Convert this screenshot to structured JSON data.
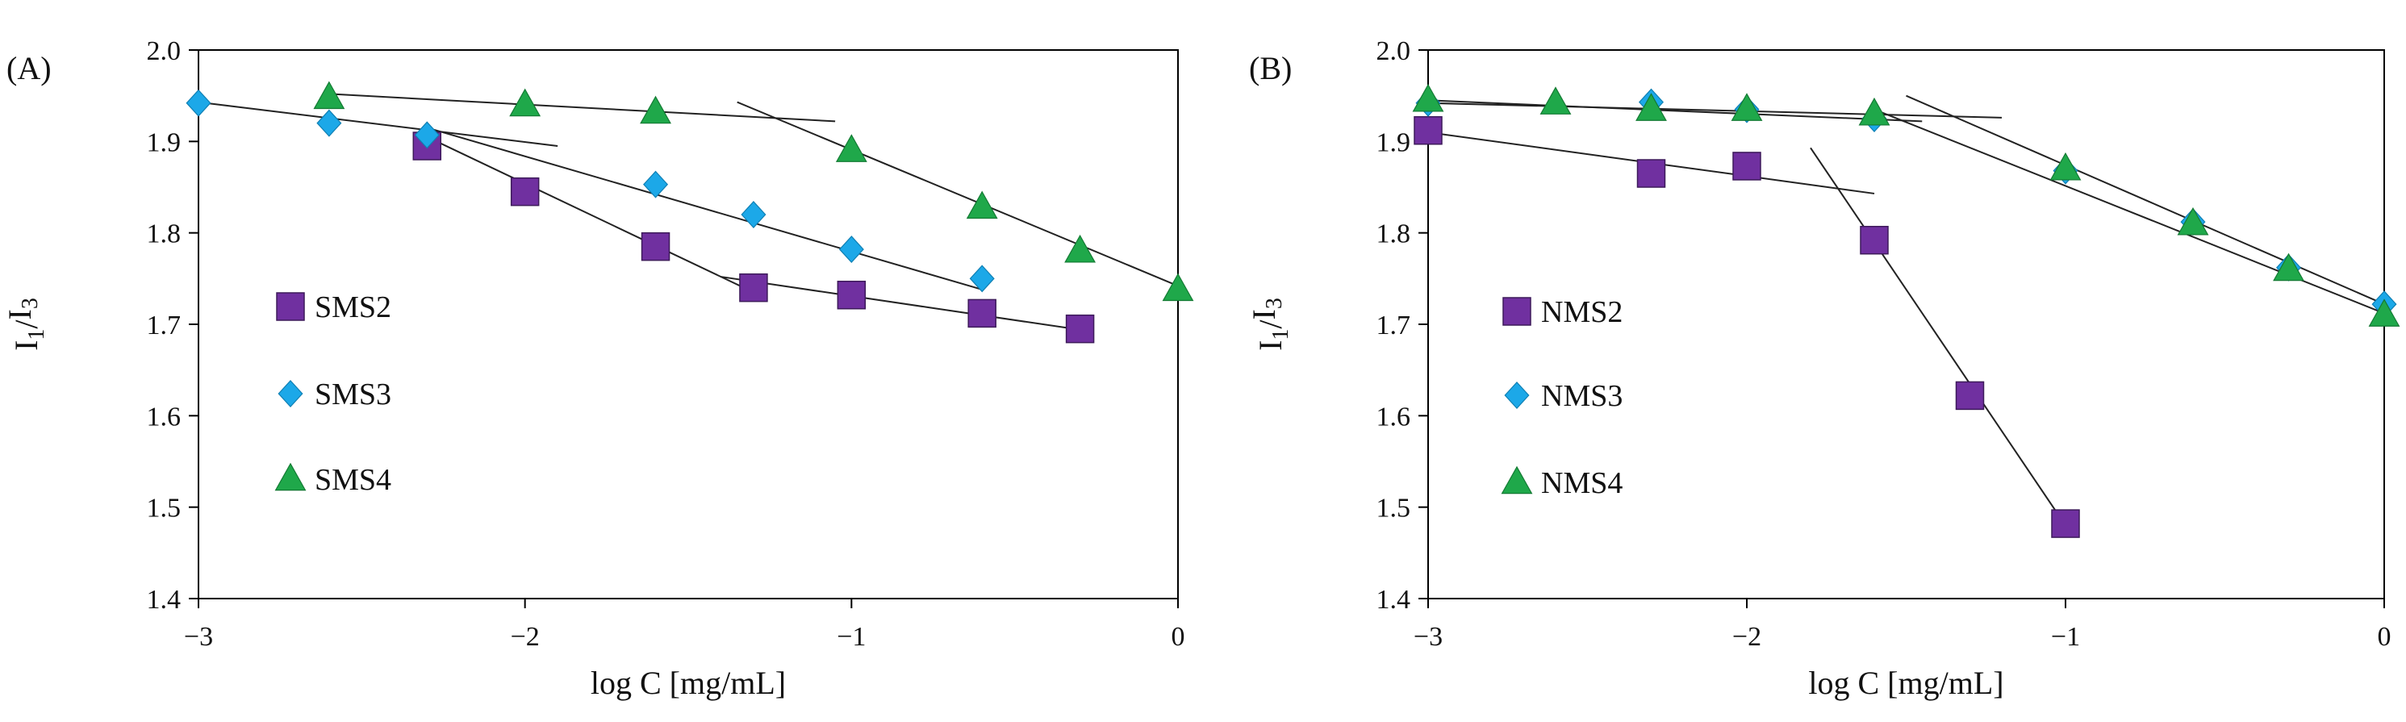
{
  "chart_data": [
    {
      "type": "scatter",
      "panel_label": "(A)",
      "xlabel": "log C [mg/mL]",
      "ylabel": {
        "main": "I",
        "sub1": "1",
        "slash": "/",
        "main2": "I",
        "sub2": "3"
      },
      "xlim": [
        -3,
        0
      ],
      "ylim": [
        1.4,
        2.0
      ],
      "xticks": [
        "−3",
        "−2",
        "−1",
        "0"
      ],
      "xtick_values": [
        -3,
        -2,
        -1,
        0
      ],
      "yticks": [
        "1.4",
        "1.5",
        "1.6",
        "1.7",
        "1.8",
        "1.9",
        "2.0"
      ],
      "ytick_values": [
        1.4,
        1.5,
        1.6,
        1.7,
        1.8,
        1.9,
        2.0
      ],
      "legend_position": "bottom-left",
      "series": [
        {
          "name": "SMS2",
          "marker": "square",
          "color": "#7030a0",
          "x": [
            -2.3,
            -2.0,
            -1.6,
            -1.3,
            -1.0,
            -0.6,
            -0.3
          ],
          "y": [
            1.895,
            1.845,
            1.785,
            1.74,
            1.732,
            1.712,
            1.695
          ]
        },
        {
          "name": "SMS3",
          "marker": "diamond",
          "color": "#1ca8e8",
          "x": [
            -3.0,
            -2.6,
            -2.3,
            -1.6,
            -1.3,
            -1.0,
            -0.6
          ],
          "y": [
            1.942,
            1.92,
            1.907,
            1.853,
            1.82,
            1.782,
            1.75
          ]
        },
        {
          "name": "SMS4",
          "marker": "triangle",
          "color": "#1fa84a",
          "x": [
            -2.6,
            -2.0,
            -1.6,
            -1.0,
            -0.6,
            -0.3,
            0.0
          ],
          "y": [
            1.948,
            1.94,
            1.932,
            1.89,
            1.828,
            1.78,
            1.738
          ]
        }
      ],
      "fit_lines": [
        {
          "color": "#222",
          "x": [
            -2.3,
            -1.3
          ],
          "y": [
            1.905,
            1.735
          ]
        },
        {
          "color": "#222",
          "x": [
            -1.4,
            -0.3
          ],
          "y": [
            1.752,
            1.694
          ]
        },
        {
          "color": "#222",
          "x": [
            -3.0,
            -1.9
          ],
          "y": [
            1.943,
            1.895
          ]
        },
        {
          "color": "#222",
          "x": [
            -2.3,
            -0.6
          ],
          "y": [
            1.915,
            1.738
          ]
        },
        {
          "color": "#222",
          "x": [
            -2.6,
            -1.05
          ],
          "y": [
            1.952,
            1.922
          ]
        },
        {
          "color": "#222",
          "x": [
            -1.35,
            0.0
          ],
          "y": [
            1.943,
            1.742
          ]
        }
      ]
    },
    {
      "type": "scatter",
      "panel_label": "(B)",
      "xlabel": "log C [mg/mL]",
      "ylabel": {
        "main": "I",
        "sub1": "1",
        "slash": "/",
        "main2": "I",
        "sub2": "3"
      },
      "xlim": [
        -3,
        0
      ],
      "ylim": [
        1.4,
        2.0
      ],
      "xticks": [
        "−3",
        "−2",
        "−1",
        "0"
      ],
      "xtick_values": [
        -3,
        -2,
        -1,
        0
      ],
      "yticks": [
        "1.4",
        "1.5",
        "1.6",
        "1.7",
        "1.8",
        "1.9",
        "2.0"
      ],
      "ytick_values": [
        1.4,
        1.5,
        1.6,
        1.7,
        1.8,
        1.9,
        2.0
      ],
      "legend_position": "bottom-left",
      "series": [
        {
          "name": "NMS2",
          "marker": "square",
          "color": "#7030a0",
          "x": [
            -3.0,
            -2.3,
            -2.0,
            -1.6,
            -1.3,
            -1.0
          ],
          "y": [
            1.912,
            1.865,
            1.873,
            1.792,
            1.622,
            1.482
          ]
        },
        {
          "name": "NMS3",
          "marker": "diamond",
          "color": "#1ca8e8",
          "x": [
            -3.0,
            -2.3,
            -2.0,
            -1.6,
            -1.0,
            -0.6,
            -0.3,
            0.0
          ],
          "y": [
            1.942,
            1.943,
            1.935,
            1.925,
            1.868,
            1.812,
            1.762,
            1.722
          ]
        },
        {
          "name": "NMS4",
          "marker": "triangle",
          "color": "#1fa84a",
          "x": [
            -3.0,
            -2.6,
            -2.3,
            -2.0,
            -1.6,
            -1.0,
            -0.6,
            -0.3,
            0.0
          ],
          "y": [
            1.945,
            1.942,
            1.935,
            1.935,
            1.93,
            1.87,
            1.81,
            1.76,
            1.71
          ]
        }
      ],
      "fit_lines": [
        {
          "color": "#222",
          "x": [
            -3.0,
            -1.6
          ],
          "y": [
            1.91,
            1.843
          ]
        },
        {
          "color": "#222",
          "x": [
            -1.8,
            -1.0
          ],
          "y": [
            1.893,
            1.48
          ]
        },
        {
          "color": "#222",
          "x": [
            -3.0,
            -1.2
          ],
          "y": [
            1.942,
            1.926
          ]
        },
        {
          "color": "#222",
          "x": [
            -3.0,
            -1.45
          ],
          "y": [
            1.945,
            1.922
          ]
        },
        {
          "color": "#222",
          "x": [
            -1.5,
            0.0
          ],
          "y": [
            1.95,
            1.722
          ]
        },
        {
          "color": "#222",
          "x": [
            -1.6,
            0.0
          ],
          "y": [
            1.935,
            1.712
          ]
        }
      ]
    }
  ]
}
